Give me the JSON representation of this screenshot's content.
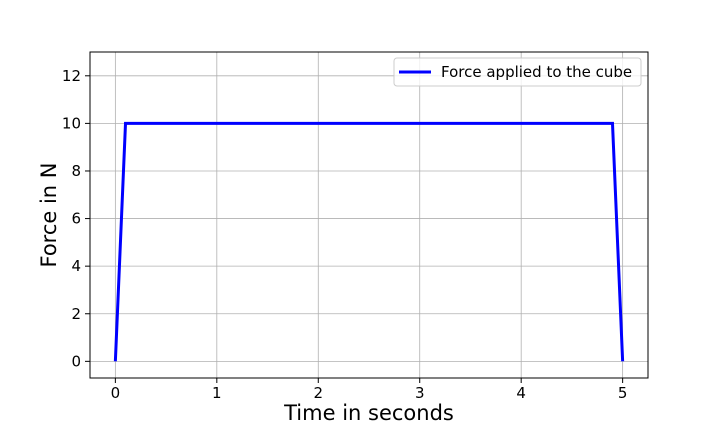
{
  "chart_data": {
    "type": "line",
    "title": "",
    "xlabel": "Time in seconds",
    "ylabel": "Force in N",
    "xlim": [
      -0.25,
      5.25
    ],
    "ylim": [
      -0.7,
      13.0
    ],
    "xticks": [
      0,
      1,
      2,
      3,
      4,
      5
    ],
    "yticks": [
      0,
      2,
      4,
      6,
      8,
      10,
      12
    ],
    "grid": true,
    "legend_position": "top-right",
    "series": [
      {
        "name": "Force applied to the cube",
        "color": "#0000ff",
        "x": [
          0,
          0.1,
          4.9,
          5.0
        ],
        "y": [
          0,
          10,
          10,
          0
        ]
      }
    ]
  }
}
